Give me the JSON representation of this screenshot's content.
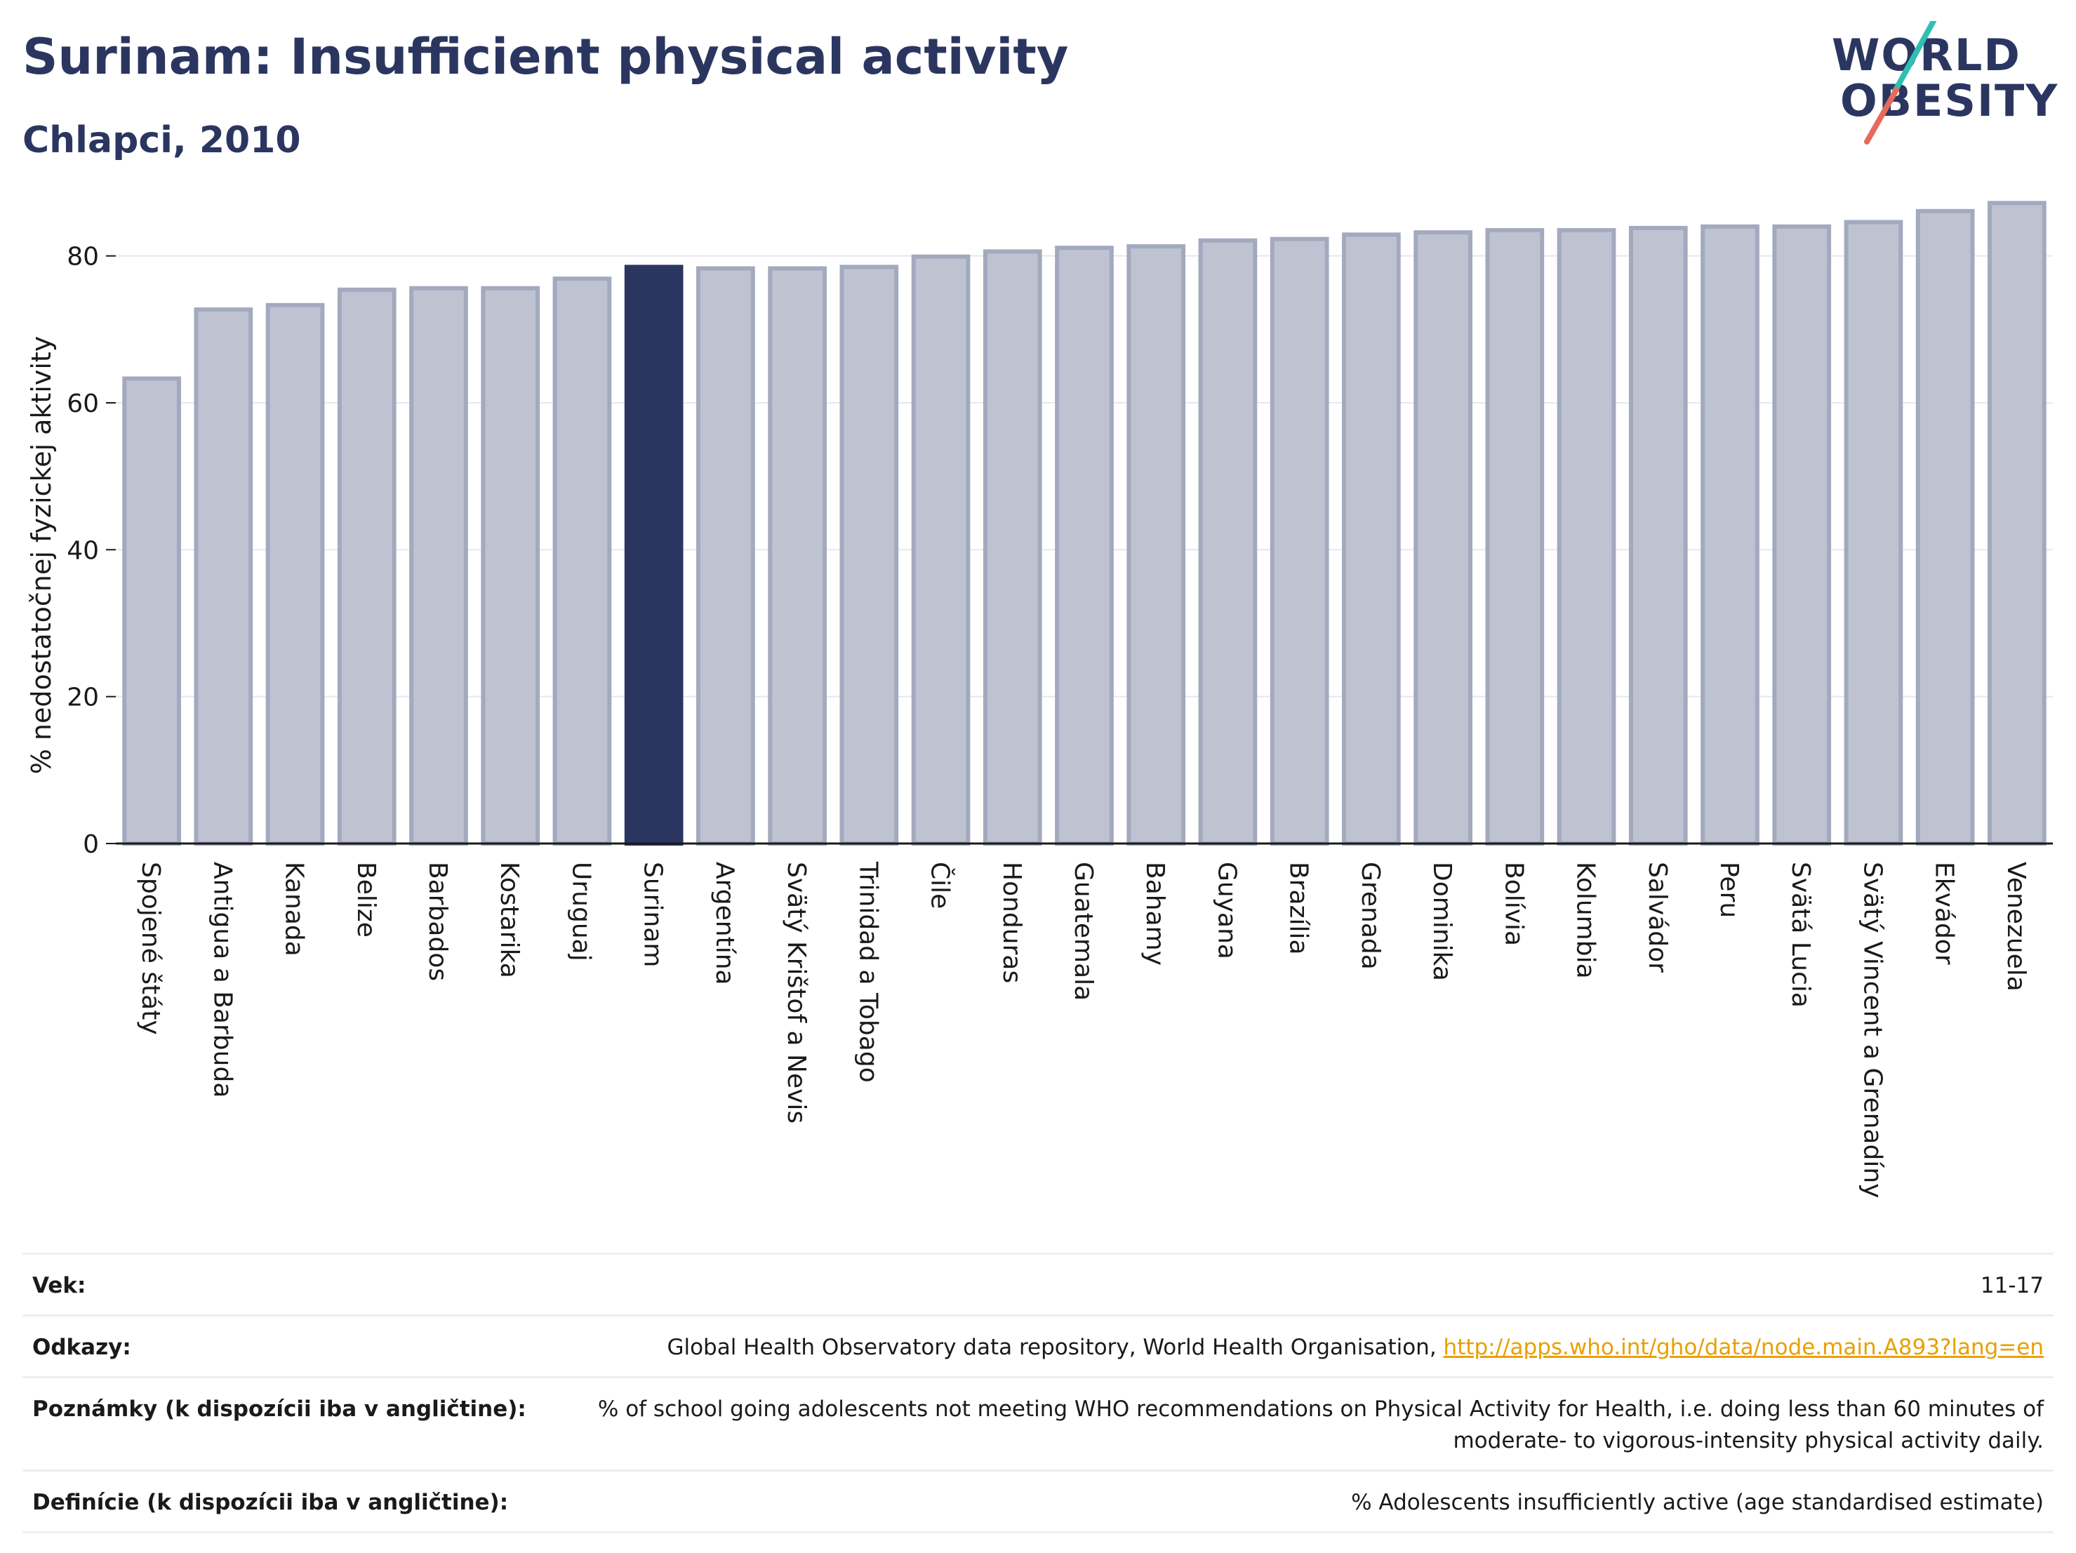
{
  "header": {
    "title": "Surinam: Insufficient physical activity",
    "subtitle": "Chlapci, 2010"
  },
  "logo": {
    "line1": "WORLD",
    "line2": "OBESITY"
  },
  "chart_data": {
    "type": "bar",
    "ylabel": "% nedostatočnej fyzickej aktivity",
    "ylim": [
      0,
      90
    ],
    "yticks": [
      0,
      20,
      40,
      60,
      80
    ],
    "grid": true,
    "categories": [
      "Spojené štáty",
      "Antigua a Barbuda",
      "Kanada",
      "Belize",
      "Barbados",
      "Kostarika",
      "Uruguaj",
      "Surinam",
      "Argentína",
      "Svätý Krištof a Nevis",
      "Trinidad a Tobago",
      "Čile",
      "Honduras",
      "Guatemala",
      "Bahamy",
      "Guyana",
      "Brazília",
      "Grenada",
      "Dominika",
      "Bolívia",
      "Kolumbia",
      "Salvádor",
      "Peru",
      "Svätá Lucia",
      "Svätý Vincent a Grenadíny",
      "Ekvádor",
      "Venezuela"
    ],
    "values": [
      63.3,
      72.7,
      73.3,
      75.4,
      75.6,
      75.6,
      76.9,
      78.5,
      78.3,
      78.3,
      78.5,
      79.9,
      80.6,
      81.1,
      81.3,
      82.1,
      82.3,
      82.9,
      83.2,
      83.5,
      83.5,
      83.8,
      84.0,
      84.0,
      84.6,
      86.1,
      87.2
    ],
    "highlight": "Surinam",
    "colors": {
      "bar": "#bfc3d1",
      "bar_edge": "#a3a9be",
      "highlight": "#2b3660",
      "grid": "#e6e8ef",
      "axis": "#1a1a1a"
    }
  },
  "info": {
    "rows": [
      {
        "label": "Vek:",
        "value": "11-17"
      },
      {
        "label": "Odkazy:",
        "value": "Global Health Observatory data repository, World Health Organisation,",
        "link": "http://apps.who.int/gho/data/node.main.A893?lang=en"
      },
      {
        "label": "Poznámky (k dispozícii iba v angličtine):",
        "value": "% of school going adolescents not meeting WHO recommendations on Physical Activity for Health, i.e. doing less than 60 minutes of moderate- to vigorous-intensity physical activity daily."
      },
      {
        "label": "Definície (k dispozícii iba v angličtine):",
        "value": "% Adolescents insufficiently active (age standardised estimate)"
      }
    ]
  }
}
